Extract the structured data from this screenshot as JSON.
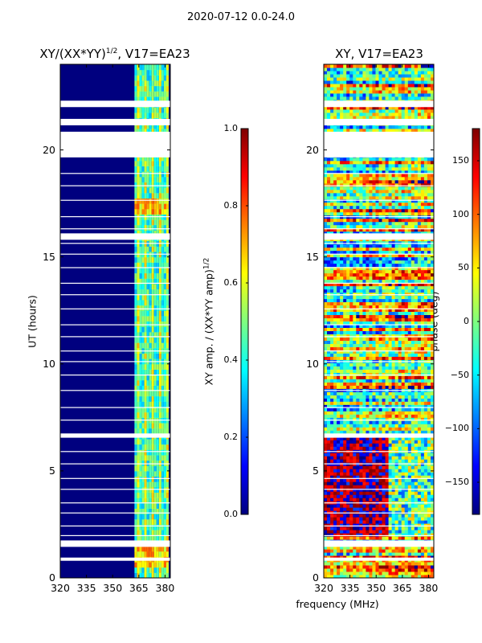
{
  "figure": {
    "suptitle": "2020-07-12 0.0-24.0",
    "xlabel": "frequency (MHz)"
  },
  "chart_data": [
    {
      "type": "heatmap",
      "title": "XY/(XX*YY)",
      "title_exp": "1/2",
      "title_suffix": ", V17=EA23",
      "xlabel": "frequency (MHz)",
      "ylabel": "UT (hours)",
      "xlim": [
        320,
        383
      ],
      "ylim": [
        0,
        24
      ],
      "xticks": [
        "320",
        "335",
        "350",
        "365",
        "380"
      ],
      "xtick_values": [
        320,
        335,
        350,
        365,
        380
      ],
      "yticks": [
        "0",
        "5",
        "10",
        "15",
        "20"
      ],
      "ytick_values": [
        0,
        5,
        10,
        15,
        20
      ],
      "colormap": "jet",
      "colorbar": {
        "label": "XY amp. / (XX*YY amp)",
        "label_exp": "1/2",
        "vmin": 0.0,
        "vmax": 1.0,
        "ticks": [
          "0.0",
          "0.2",
          "0.4",
          "0.6",
          "0.8",
          "1.0"
        ],
        "tick_values": [
          0.0,
          0.2,
          0.4,
          0.6,
          0.8,
          1.0
        ]
      }
    },
    {
      "type": "heatmap",
      "title": "XY, V17=EA23",
      "xlabel": "frequency (MHz)",
      "ylabel": "",
      "xlim": [
        320,
        383
      ],
      "ylim": [
        0,
        24
      ],
      "xticks": [
        "320",
        "335",
        "350",
        "365",
        "380"
      ],
      "xtick_values": [
        320,
        335,
        350,
        365,
        380
      ],
      "yticks": [
        "0",
        "5",
        "10",
        "15",
        "20"
      ],
      "ytick_values": [
        0,
        5,
        10,
        15,
        20
      ],
      "colormap": "jet",
      "colorbar": {
        "label": "phase (deg)",
        "vmin": -180,
        "vmax": 180,
        "ticks": [
          "−150",
          "−100",
          "−50",
          "0",
          "50",
          "100",
          "150"
        ],
        "tick_values": [
          -150,
          -100,
          -50,
          0,
          50,
          100,
          150
        ]
      }
    }
  ],
  "colors": {
    "jet": [
      "#00007f",
      "#0000ff",
      "#007fff",
      "#00ffff",
      "#7fff7f",
      "#ffff00",
      "#ff7f00",
      "#ff0000",
      "#7f0000"
    ]
  }
}
